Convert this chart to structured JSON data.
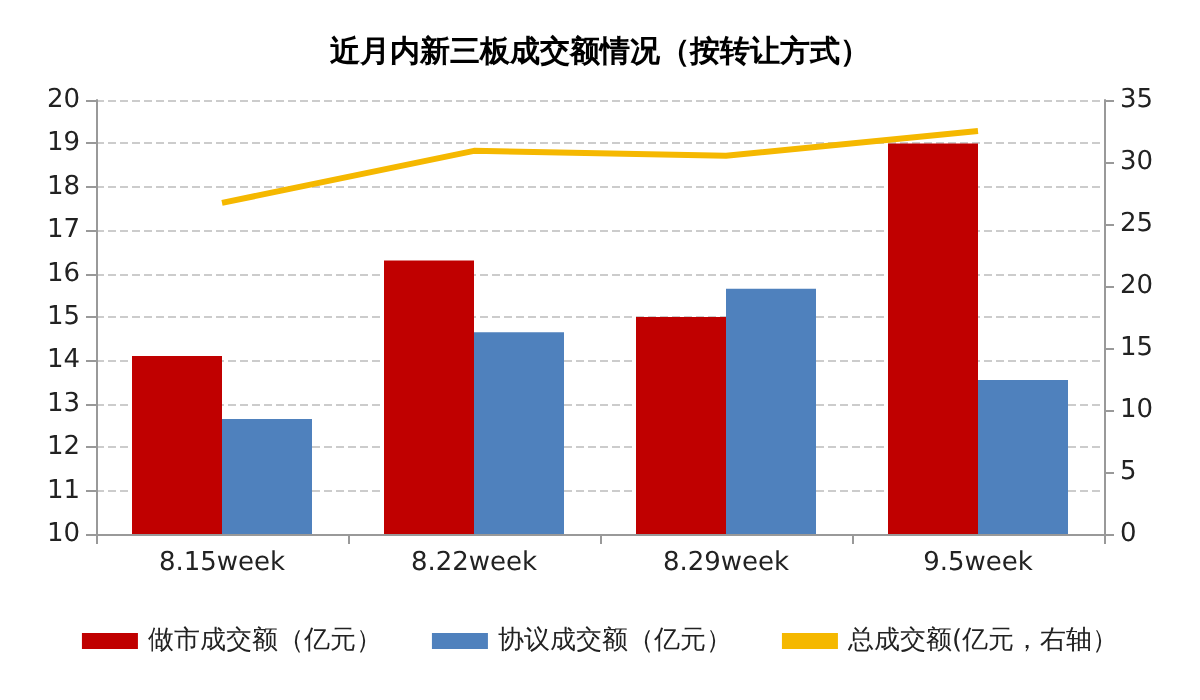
{
  "chart_data": {
    "type": "bar",
    "title": "近月内新三板成交额情况（按转让方式）",
    "categories": [
      "8.15week",
      "8.22week",
      "8.29week",
      "9.5week"
    ],
    "series": [
      {
        "name": "做市成交额（亿元）",
        "color": "#c00000",
        "values": [
          14.1,
          16.3,
          15.0,
          19.0
        ]
      },
      {
        "name": "协议成交额（亿元）",
        "color": "#4f81bd",
        "values": [
          12.65,
          14.65,
          15.65,
          13.55
        ]
      },
      {
        "name": "总成交额(亿元，右轴）",
        "type": "line",
        "axis": "y2",
        "color": "#f5b800",
        "values": [
          26.7,
          30.9,
          30.5,
          32.5
        ]
      }
    ],
    "ylim": [
      10,
      20
    ],
    "yticks": [
      10,
      11,
      12,
      13,
      14,
      15,
      16,
      17,
      18,
      19,
      20
    ],
    "y2lim": [
      0,
      35
    ],
    "y2ticks": [
      0,
      5,
      10,
      15,
      20,
      25,
      30,
      35
    ],
    "grid": "y",
    "legend": "bottom",
    "marker": "none"
  }
}
